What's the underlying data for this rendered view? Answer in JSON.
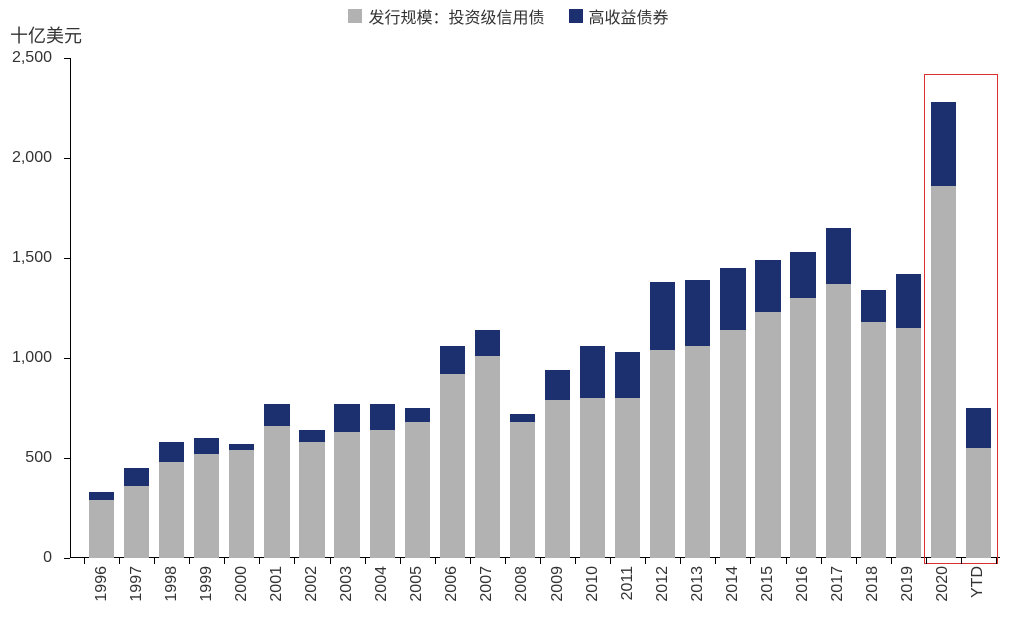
{
  "chart": {
    "type": "stacked-bar",
    "y_unit_label": "十亿美元",
    "background_color": "#ffffff",
    "text_color": "#333333",
    "axis_color": "#000000",
    "label_fontsize": 16,
    "title_fontsize": 18,
    "legend": [
      {
        "label": "发行规模：投资级信用债",
        "color": "#b2b2b2"
      },
      {
        "label": "高收益债券",
        "color": "#1c2f6e"
      }
    ],
    "y_axis": {
      "min": 0,
      "max": 2500,
      "tick_step": 500,
      "ticks": [
        "0",
        "500",
        "1,000",
        "1,500",
        "2,000",
        "2,500"
      ]
    },
    "categories": [
      "1996",
      "1997",
      "1998",
      "1999",
      "2000",
      "2001",
      "2002",
      "2003",
      "2004",
      "2005",
      "2006",
      "2007",
      "2008",
      "2009",
      "2010",
      "2011",
      "2012",
      "2013",
      "2014",
      "2015",
      "2016",
      "2017",
      "2018",
      "2019",
      "2020",
      "YTD"
    ],
    "series": {
      "investment_grade": [
        290,
        360,
        480,
        520,
        540,
        660,
        580,
        630,
        640,
        680,
        920,
        1010,
        680,
        790,
        800,
        800,
        1040,
        1060,
        1140,
        1230,
        1300,
        1370,
        1180,
        1150,
        1860,
        550
      ],
      "high_yield": [
        40,
        90,
        100,
        80,
        30,
        110,
        60,
        140,
        130,
        70,
        140,
        130,
        40,
        150,
        260,
        230,
        340,
        330,
        310,
        260,
        230,
        280,
        160,
        270,
        420,
        200
      ]
    },
    "bar_width_ratio": 0.72,
    "bar_gap_ratio": 0.28,
    "highlight": {
      "start_index": 24,
      "end_index": 25,
      "border_color": "#d93030",
      "border_width": 1
    }
  }
}
